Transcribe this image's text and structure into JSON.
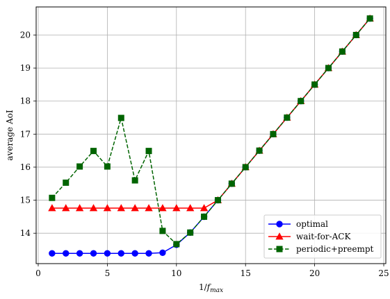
{
  "chart_data": {
    "type": "line",
    "xlabel": "1/f_max",
    "xlabel_parts": {
      "base": "1/",
      "italic": "f",
      "sub": "max"
    },
    "ylabel": "average AoI",
    "xlim": [
      -0.15,
      25.15
    ],
    "ylim": [
      13.08,
      20.85
    ],
    "xticks": [
      0,
      5,
      10,
      15,
      20,
      25
    ],
    "yticks": [
      14,
      15,
      16,
      17,
      18,
      19,
      20
    ],
    "grid": true,
    "legend_position": "lower-right",
    "series": [
      {
        "name": "optimal",
        "color": "#0000ff",
        "linestyle": "solid",
        "marker": "circle",
        "x": [
          1,
          2,
          3,
          4,
          5,
          6,
          7,
          8,
          9,
          10,
          11,
          12,
          13,
          14,
          15,
          16,
          17,
          18,
          19,
          20,
          21,
          22,
          23,
          24
        ],
        "y": [
          13.39,
          13.39,
          13.39,
          13.39,
          13.39,
          13.39,
          13.39,
          13.39,
          13.41,
          13.65,
          14.02,
          14.5,
          15.0,
          15.5,
          16.0,
          16.5,
          17.0,
          17.5,
          18.0,
          18.5,
          19.0,
          19.5,
          20.0,
          20.5
        ]
      },
      {
        "name": "wait-for-ACK",
        "color": "#ff0000",
        "linestyle": "solid",
        "marker": "triangle",
        "x": [
          1,
          2,
          3,
          4,
          5,
          6,
          7,
          8,
          9,
          10,
          11,
          12,
          13,
          14,
          15,
          16,
          17,
          18,
          19,
          20,
          21,
          22,
          23,
          24
        ],
        "y": [
          14.76,
          14.76,
          14.76,
          14.76,
          14.76,
          14.76,
          14.76,
          14.76,
          14.76,
          14.76,
          14.76,
          14.76,
          15.0,
          15.5,
          16.0,
          16.5,
          17.0,
          17.5,
          18.0,
          18.5,
          19.0,
          19.5,
          20.0,
          20.5
        ]
      },
      {
        "name": "periodic+preempt",
        "color": "#006400",
        "linestyle": "dashed",
        "marker": "square",
        "x": [
          1,
          2,
          3,
          4,
          5,
          6,
          7,
          8,
          9,
          10,
          11,
          12,
          13,
          14,
          15,
          16,
          17,
          18,
          19,
          20,
          21,
          22,
          23,
          24
        ],
        "y": [
          15.07,
          15.53,
          16.02,
          16.49,
          16.02,
          17.49,
          15.6,
          16.49,
          14.07,
          13.67,
          14.02,
          14.5,
          15.0,
          15.5,
          16.0,
          16.5,
          17.0,
          17.5,
          18.0,
          18.5,
          19.0,
          19.5,
          20.0,
          20.5
        ]
      }
    ]
  }
}
